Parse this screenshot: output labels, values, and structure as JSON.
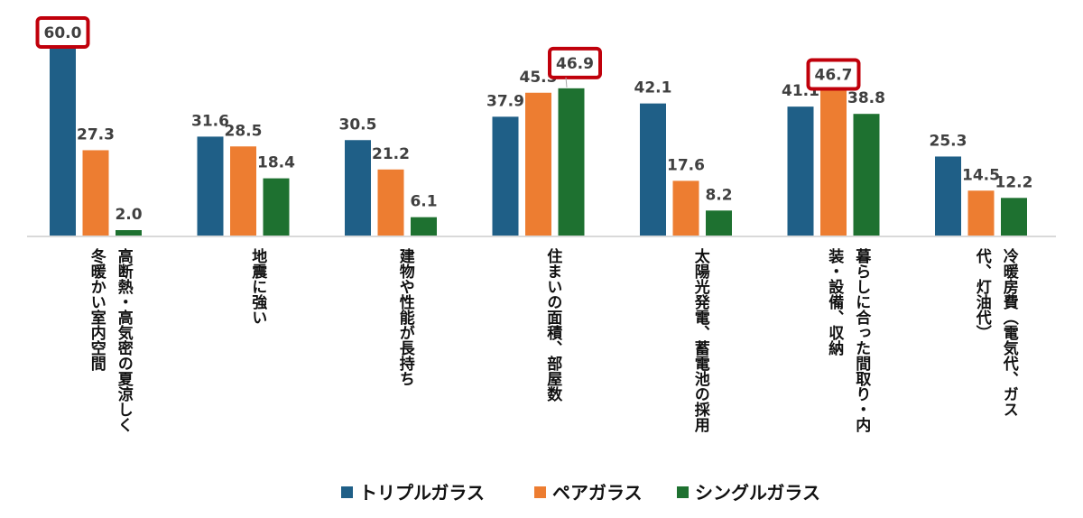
{
  "chart_data": {
    "type": "bar",
    "categories": [
      [
        "高断熱・高気密の夏涼しく",
        "冬暖かい室内空間"
      ],
      [
        "地震に強い"
      ],
      [
        "建物や性能が長持ち"
      ],
      [
        "住まいの面積、部屋数"
      ],
      [
        "太陽光発電、蓄電池の採用"
      ],
      [
        "暮らしに合った間取り・内",
        "装・設備、収納"
      ],
      [
        "冷暖房費（電気代、ガス",
        "代、灯油代）"
      ]
    ],
    "series": [
      {
        "name": "トリプルガラス",
        "color": "#1F5F87",
        "values": [
          60.0,
          31.6,
          30.5,
          37.9,
          42.1,
          41.1,
          25.3
        ]
      },
      {
        "name": "ペアガラス",
        "color": "#ED7D31",
        "values": [
          27.3,
          28.5,
          21.2,
          45.5,
          17.6,
          46.7,
          14.5
        ]
      },
      {
        "name": "シングルガラス",
        "color": "#1E7130",
        "values": [
          2.0,
          18.4,
          6.1,
          46.9,
          8.2,
          38.8,
          12.2
        ]
      }
    ],
    "highlighted": [
      {
        "series": 0,
        "category": 0
      },
      {
        "series": 2,
        "category": 3
      },
      {
        "series": 1,
        "category": 5
      }
    ],
    "highlight_color": "#C0000B",
    "ylim": [
      0,
      60
    ],
    "legend_position": "bottom",
    "grid": false
  }
}
